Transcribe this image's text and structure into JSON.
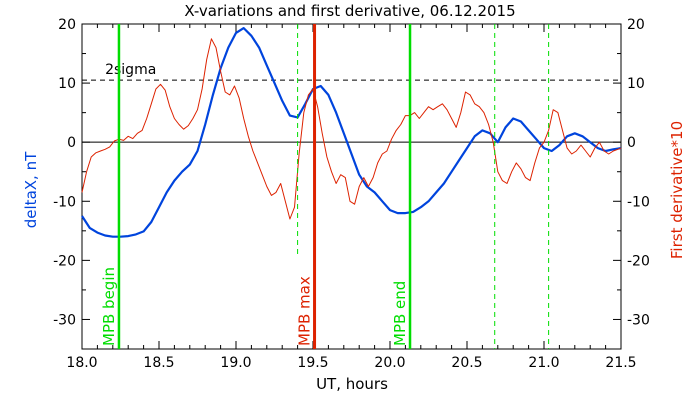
{
  "chart_data": {
    "type": "line",
    "title": "X-variations and first derivative, 06.12.2015",
    "xlabel": "UT, hours",
    "ylabel_left": "deltaX, nT",
    "ylabel_right": "First derivative*10",
    "xlim": [
      18.0,
      21.5
    ],
    "ylim": [
      -35,
      20
    ],
    "x_ticks": [
      18.0,
      18.5,
      19.0,
      19.5,
      20.0,
      20.5,
      21.0,
      21.5
    ],
    "x_tick_labels": [
      "18.0",
      "18.5",
      "19.0",
      "19.5",
      "20.0",
      "20.5",
      "21.0",
      "21.5"
    ],
    "y_ticks": [
      20,
      10,
      0,
      -10,
      -20,
      -30
    ],
    "y_tick_labels": [
      "20",
      "10",
      "0",
      "-10",
      "-20",
      "-30"
    ],
    "grid": false,
    "sigma": {
      "label": "2sigma",
      "value": 10.5
    },
    "markers": [
      {
        "x": 18.24,
        "label": "MPB begin",
        "color": "#00dd00",
        "style": "solid"
      },
      {
        "x": 19.51,
        "label": "MPB max",
        "color": "#dd2200",
        "style": "solid"
      },
      {
        "x": 20.13,
        "label": "MPB end",
        "color": "#00dd00",
        "style": "solid"
      }
    ],
    "dashed_markers": [
      {
        "x": 19.4,
        "y_from": -19,
        "y_to": 20,
        "color": "#00dd00"
      },
      {
        "x": 20.68,
        "y_from": -35,
        "y_to": 20,
        "color": "#00dd00"
      },
      {
        "x": 21.03,
        "y_from": -35,
        "y_to": 20,
        "color": "#00dd00"
      }
    ],
    "series": [
      {
        "name": "deltaX, nT",
        "color": "#0044dd",
        "x": [
          18.0,
          18.05,
          18.1,
          18.15,
          18.2,
          18.25,
          18.3,
          18.35,
          18.4,
          18.45,
          18.5,
          18.55,
          18.6,
          18.65,
          18.7,
          18.75,
          18.8,
          18.85,
          18.9,
          18.95,
          19.0,
          19.05,
          19.1,
          19.15,
          19.2,
          19.25,
          19.3,
          19.35,
          19.4,
          19.45,
          19.5,
          19.55,
          19.6,
          19.65,
          19.7,
          19.75,
          19.8,
          19.85,
          19.9,
          19.95,
          20.0,
          20.05,
          20.1,
          20.15,
          20.2,
          20.25,
          20.3,
          20.35,
          20.4,
          20.45,
          20.5,
          20.55,
          20.6,
          20.65,
          20.7,
          20.75,
          20.8,
          20.85,
          20.9,
          20.95,
          21.0,
          21.05,
          21.1,
          21.15,
          21.2,
          21.25,
          21.3,
          21.35,
          21.4,
          21.45,
          21.5
        ],
        "values": [
          -12.5,
          -14.5,
          -15.3,
          -15.8,
          -16.0,
          -16.0,
          -15.9,
          -15.6,
          -15.1,
          -13.5,
          -11.0,
          -8.5,
          -6.5,
          -5.0,
          -3.8,
          -1.5,
          3.0,
          8.0,
          12.5,
          16.0,
          18.5,
          19.3,
          18.0,
          16.0,
          13.0,
          10.0,
          7.0,
          4.5,
          4.2,
          6.5,
          9.0,
          9.5,
          8.0,
          5.0,
          1.5,
          -2.0,
          -5.5,
          -7.5,
          -8.5,
          -10.0,
          -11.5,
          -12.0,
          -12.0,
          -11.8,
          -11.0,
          -10.0,
          -8.5,
          -7.0,
          -5.0,
          -3.0,
          -1.0,
          1.0,
          2.0,
          1.5,
          0.0,
          2.5,
          4.0,
          3.5,
          2.0,
          0.5,
          -1.0,
          -1.5,
          -0.5,
          1.0,
          1.5,
          1.0,
          0.0,
          -1.0,
          -1.5,
          -1.2,
          -1.0
        ]
      },
      {
        "name": "First derivative*10",
        "color": "#dd2200",
        "x": [
          18.0,
          18.03,
          18.06,
          18.09,
          18.12,
          18.15,
          18.18,
          18.21,
          18.24,
          18.27,
          18.3,
          18.33,
          18.36,
          18.39,
          18.42,
          18.45,
          18.48,
          18.51,
          18.54,
          18.57,
          18.6,
          18.63,
          18.66,
          18.69,
          18.72,
          18.75,
          18.78,
          18.81,
          18.84,
          18.87,
          18.9,
          18.93,
          18.96,
          18.99,
          19.02,
          19.05,
          19.08,
          19.11,
          19.14,
          19.17,
          19.2,
          19.23,
          19.26,
          19.29,
          19.32,
          19.35,
          19.38,
          19.41,
          19.44,
          19.47,
          19.5,
          19.53,
          19.56,
          19.59,
          19.62,
          19.65,
          19.68,
          19.71,
          19.74,
          19.77,
          19.8,
          19.83,
          19.86,
          19.89,
          19.92,
          19.95,
          19.98,
          20.01,
          20.04,
          20.07,
          20.1,
          20.13,
          20.16,
          20.19,
          20.22,
          20.25,
          20.28,
          20.31,
          20.34,
          20.37,
          20.4,
          20.43,
          20.46,
          20.49,
          20.52,
          20.55,
          20.58,
          20.61,
          20.64,
          20.67,
          20.7,
          20.73,
          20.76,
          20.79,
          20.82,
          20.85,
          20.88,
          20.91,
          20.94,
          20.97,
          21.0,
          21.03,
          21.06,
          21.09,
          21.12,
          21.15,
          21.18,
          21.21,
          21.24,
          21.27,
          21.3,
          21.33,
          21.36,
          21.39,
          21.42,
          21.45,
          21.48,
          21.5
        ],
        "values": [
          -8.5,
          -5.0,
          -2.5,
          -1.8,
          -1.5,
          -1.2,
          -0.8,
          0.2,
          0.5,
          0.3,
          1.0,
          0.6,
          1.5,
          2.0,
          4.0,
          6.5,
          9.0,
          9.8,
          8.8,
          6.0,
          4.0,
          3.0,
          2.2,
          2.8,
          4.0,
          5.5,
          9.0,
          14.0,
          17.5,
          16.0,
          12.0,
          8.5,
          8.0,
          9.5,
          7.5,
          4.0,
          1.0,
          -1.5,
          -3.5,
          -5.5,
          -7.5,
          -9.0,
          -8.5,
          -7.0,
          -10.0,
          -13.0,
          -11.0,
          -2.0,
          5.0,
          8.0,
          9.0,
          6.0,
          1.5,
          -2.5,
          -5.0,
          -7.0,
          -5.5,
          -6.0,
          -10.0,
          -10.5,
          -7.5,
          -6.0,
          -7.5,
          -6.0,
          -3.5,
          -2.0,
          -1.5,
          0.5,
          2.0,
          3.0,
          4.5,
          4.5,
          5.0,
          4.0,
          5.0,
          6.0,
          5.5,
          6.0,
          6.5,
          5.5,
          4.0,
          2.5,
          5.0,
          8.5,
          8.0,
          6.5,
          6.0,
          5.0,
          3.0,
          0.0,
          -5.0,
          -6.5,
          -7.0,
          -5.0,
          -3.5,
          -4.5,
          -6.0,
          -6.5,
          -3.5,
          -1.0,
          0.0,
          2.0,
          5.5,
          5.0,
          2.0,
          -1.0,
          -2.0,
          -1.5,
          -0.5,
          -1.5,
          -2.5,
          -1.0,
          0.0,
          -1.5,
          -2.0,
          -1.5,
          -1.2,
          -1.0
        ]
      }
    ]
  }
}
